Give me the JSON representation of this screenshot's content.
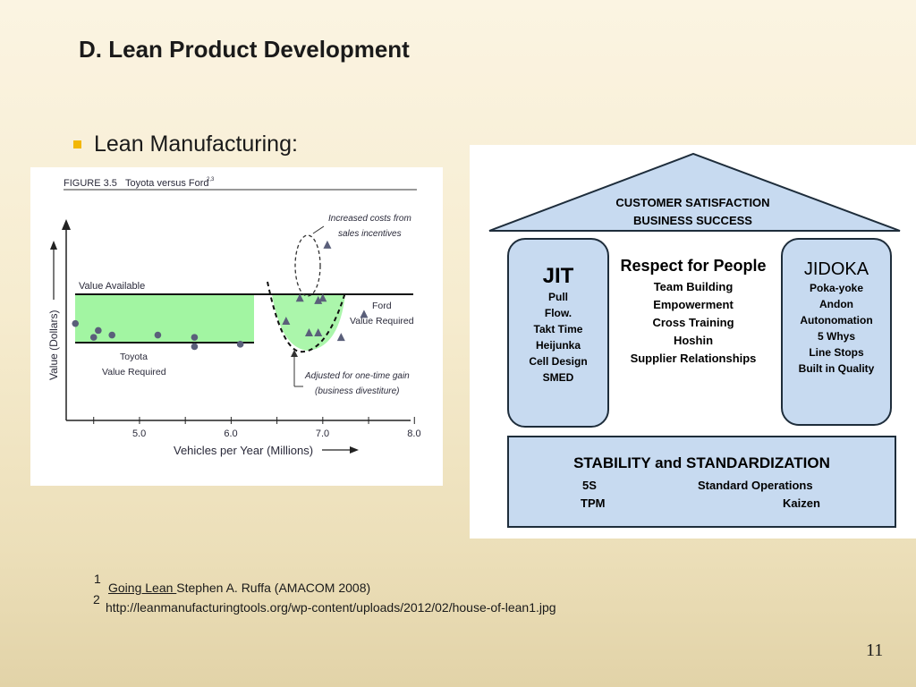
{
  "slide": {
    "title": "D. Lean Product Development",
    "bullet": "Lean Manufacturing:",
    "page_number": "11"
  },
  "figure": {
    "caption_number": "FIGURE 3.5",
    "caption_title": "Toyota versus Ford",
    "caption_sup": "2,3",
    "y_axis_label": "Value (Dollars)",
    "x_axis_label": "Vehicles per Year (Millions)",
    "x_ticks": [
      "5.0",
      "6.0",
      "7.0",
      "8.0"
    ],
    "label_value_available": "Value Available",
    "label_toyota_1": "Toyota",
    "label_toyota_2": "Value Required",
    "label_ford_1": "Ford",
    "label_ford_2": "Value Required",
    "annot_increased_1": "Increased costs from",
    "annot_increased_2": "sales incentives",
    "annot_adjusted_1": "Adjusted for one-time gain",
    "annot_adjusted_2": "(business divestiture)"
  },
  "chart_data": {
    "type": "scatter",
    "title": "Toyota versus Ford",
    "xlabel": "Vehicles per Year (Millions)",
    "ylabel": "Value (Dollars)",
    "xlim": [
      4.2,
      8.3
    ],
    "series": [
      {
        "name": "Toyota",
        "marker": "circle",
        "x": [
          4.3,
          4.5,
          4.55,
          4.7,
          5.2,
          5.6,
          5.6,
          6.1
        ],
        "y": [
          0.42,
          0.36,
          0.39,
          0.37,
          0.37,
          0.36,
          0.32,
          0.33
        ]
      },
      {
        "name": "Ford",
        "marker": "triangle",
        "x": [
          6.6,
          6.75,
          6.95,
          7.05,
          7.0,
          6.85,
          6.95,
          7.2,
          7.45
        ],
        "y": [
          0.43,
          0.53,
          0.52,
          0.76,
          0.53,
          0.38,
          0.38,
          0.36,
          0.46
        ]
      }
    ],
    "colors": {
      "value_band": "#a2f5a2",
      "marker": "#5a5f7a"
    }
  },
  "house": {
    "roof_line1": "CUSTOMER SATISFACTION",
    "roof_line2": "BUSINESS SUCCESS",
    "left_pillar": {
      "title": "JIT",
      "items": [
        "Pull",
        "Flow.",
        "Takt Time",
        "Heijunka",
        "Cell Design",
        "SMED"
      ]
    },
    "center": {
      "title": "Respect for People",
      "items": [
        "Team Building",
        "Empowerment",
        "Cross Training",
        "Hoshin",
        "Supplier Relationships"
      ]
    },
    "right_pillar": {
      "title": "JIDOKA",
      "items": [
        "Poka-yoke",
        "Andon",
        "Autonomation",
        "5 Whys",
        "Line Stops",
        "Built in Quality"
      ]
    },
    "foundation": {
      "title": "STABILITY and STANDARDIZATION",
      "left_1": "5S",
      "left_2": "TPM",
      "right_1": "Standard Operations",
      "right_2": "Kaizen"
    },
    "colors": {
      "fill": "#c7daf0",
      "stroke": "#1e2d3b"
    }
  },
  "footnotes": {
    "n1": "1",
    "n1_link": "Going Lean ",
    "n1_text": "Stephen A. Ruffa (AMACOM 2008)",
    "n2": "2",
    "n2_text": "http://leanmanufacturingtools.org/wp-content/uploads/2012/02/house-of-lean1.jpg"
  },
  "theme": {
    "bullet_color": "#f2b705"
  }
}
